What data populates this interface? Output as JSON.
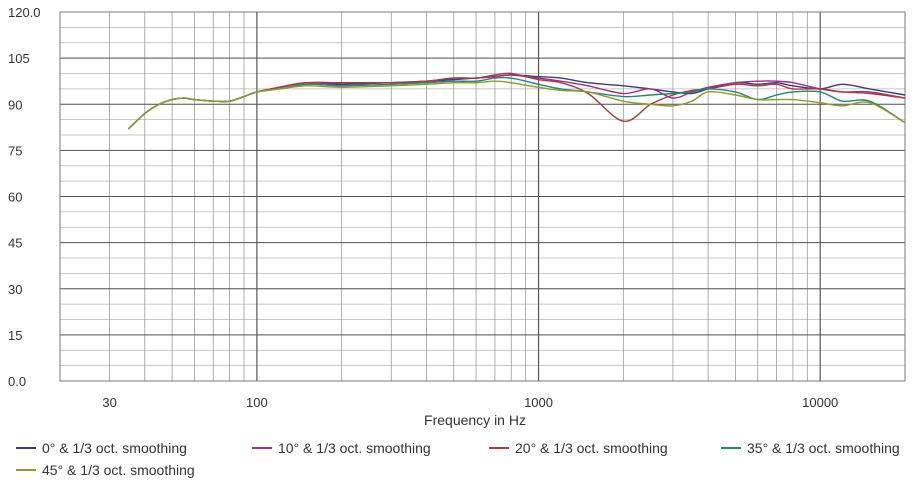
{
  "chart_data": {
    "type": "line",
    "title": "",
    "xlabel": "Frequency in Hz",
    "ylabel": "",
    "xscale": "log",
    "xlim": [
      20,
      20000
    ],
    "ylim": [
      0,
      120
    ],
    "x_ticks": [
      30,
      100,
      1000,
      10000
    ],
    "x_tick_labels": [
      "30",
      "100",
      "1000",
      "10000"
    ],
    "y_ticks": [
      0,
      15,
      30,
      45,
      60,
      75,
      90,
      105,
      120
    ],
    "y_tick_labels": [
      "0.0",
      "15",
      "30",
      "45",
      "60",
      "75",
      "90",
      "105",
      "120.0"
    ],
    "grid": true,
    "legend_position": "bottom",
    "series": [
      {
        "name": "0° & 1/3 oct. smoothing",
        "color": "#3b3a7a",
        "x": [
          35,
          40,
          45,
          50,
          55,
          60,
          70,
          80,
          90,
          100,
          120,
          150,
          200,
          300,
          400,
          500,
          600,
          700,
          800,
          1000,
          1200,
          1500,
          2000,
          2500,
          3000,
          3500,
          4000,
          5000,
          6000,
          7000,
          8000,
          10000,
          12000,
          15000,
          20000
        ],
        "y": [
          82,
          87,
          90,
          91.5,
          92,
          91.5,
          91,
          91,
          92.5,
          94,
          95.5,
          97,
          96.5,
          97,
          97.5,
          98,
          98.5,
          99,
          99.5,
          99,
          98.5,
          97,
          96,
          95,
          94,
          93.5,
          95,
          97,
          96.5,
          97,
          96,
          95,
          96.5,
          95,
          93
        ]
      },
      {
        "name": "10° & 1/3 oct. smoothing",
        "color": "#9b2d8e",
        "x": [
          35,
          40,
          45,
          50,
          55,
          60,
          70,
          80,
          90,
          100,
          120,
          150,
          200,
          300,
          400,
          500,
          600,
          700,
          800,
          1000,
          1200,
          1500,
          2000,
          2500,
          3000,
          3500,
          4000,
          5000,
          6000,
          7000,
          8000,
          10000,
          12000,
          15000,
          20000
        ],
        "y": [
          82,
          87,
          90,
          91.5,
          92,
          91.5,
          91,
          91,
          92.5,
          94,
          95.5,
          97,
          97,
          97,
          97.5,
          98.5,
          98.5,
          99,
          99.5,
          98.5,
          97.5,
          96,
          93.5,
          95,
          92,
          94,
          95.5,
          97,
          97.5,
          97.5,
          97,
          95,
          94,
          94,
          92
        ]
      },
      {
        "name": "20° & 1/3 oct. smoothing",
        "color": "#a83a3a",
        "x": [
          35,
          40,
          45,
          50,
          55,
          60,
          70,
          80,
          90,
          100,
          120,
          150,
          200,
          300,
          400,
          500,
          600,
          700,
          800,
          1000,
          1200,
          1500,
          2000,
          2500,
          3000,
          3500,
          4000,
          5000,
          6000,
          7000,
          8000,
          10000,
          12000,
          15000,
          20000
        ],
        "y": [
          82,
          87,
          90,
          91.5,
          92,
          91.5,
          91,
          91,
          92.5,
          94,
          95.5,
          97,
          97,
          97,
          97.5,
          98.5,
          98.5,
          99.5,
          100,
          98,
          97,
          93.5,
          84.5,
          90,
          93,
          94.5,
          95,
          96.5,
          96,
          96.5,
          95,
          95,
          94,
          93.5,
          92
        ]
      },
      {
        "name": "35° & 1/3 oct. smoothing",
        "color": "#1a8a72",
        "x": [
          35,
          40,
          45,
          50,
          55,
          60,
          70,
          80,
          90,
          100,
          120,
          150,
          200,
          300,
          400,
          500,
          600,
          700,
          800,
          1000,
          1200,
          1500,
          2000,
          2500,
          3000,
          3500,
          4000,
          5000,
          6000,
          7000,
          8000,
          10000,
          12000,
          15000,
          20000
        ],
        "y": [
          82,
          87,
          90,
          91.5,
          92,
          91.5,
          91,
          91,
          92.5,
          94,
          95,
          96.5,
          96,
          96.5,
          97,
          97.5,
          97.5,
          98.5,
          98.5,
          96.5,
          95,
          94,
          92.5,
          93,
          93.5,
          94,
          95,
          94,
          91.5,
          93,
          94,
          94,
          91,
          91,
          84
        ]
      },
      {
        "name": "45° & 1/3 oct. smoothing",
        "color": "#8e9a2a",
        "x": [
          35,
          40,
          45,
          50,
          55,
          60,
          70,
          80,
          90,
          100,
          120,
          150,
          200,
          300,
          400,
          500,
          600,
          700,
          800,
          1000,
          1200,
          1500,
          2000,
          2500,
          3000,
          3500,
          4000,
          5000,
          6000,
          7000,
          8000,
          10000,
          12000,
          15000,
          20000
        ],
        "y": [
          82,
          87,
          90,
          91.5,
          92,
          91.5,
          91,
          91,
          92.5,
          94,
          95,
          96,
          95.5,
          96,
          96.5,
          97,
          97,
          97.5,
          97,
          95.5,
          94.5,
          94,
          91,
          90,
          89.5,
          91,
          94,
          93,
          91.5,
          91.5,
          91.5,
          90.5,
          89.5,
          90.5,
          84
        ]
      }
    ]
  }
}
